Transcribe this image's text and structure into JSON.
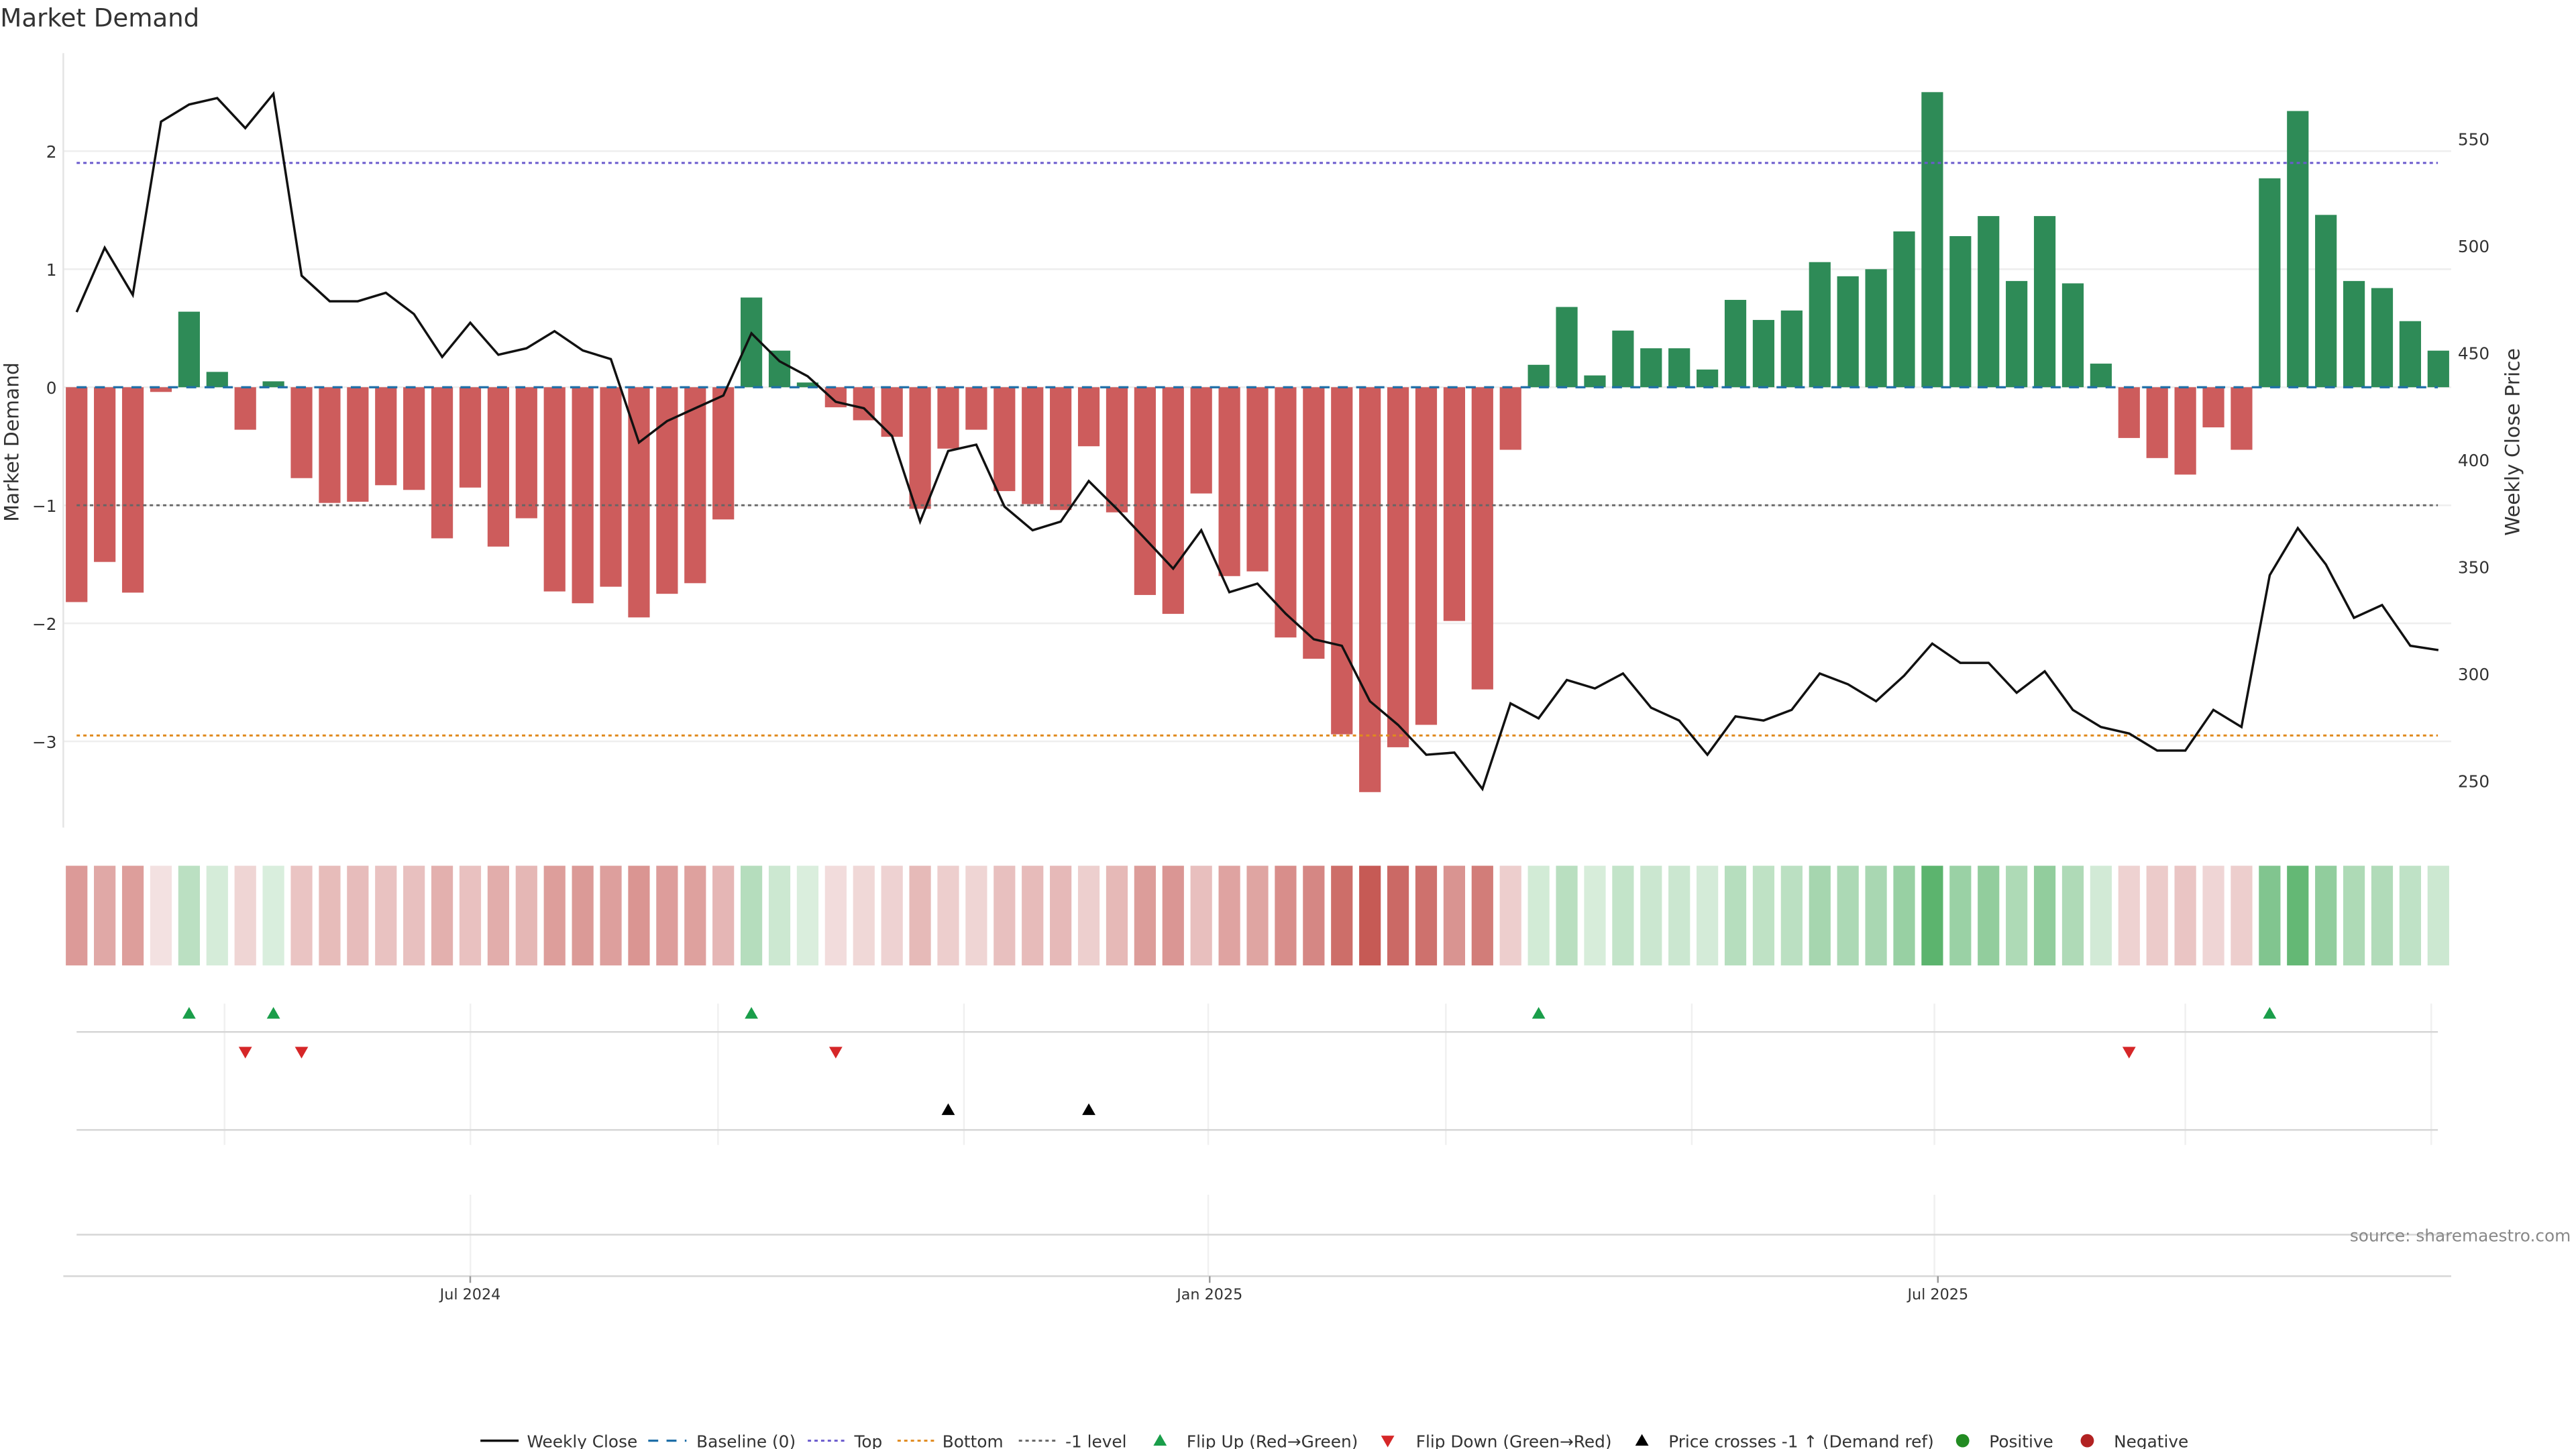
{
  "chart_data": {
    "type": "bar",
    "title": "Market Demand",
    "ylabel": "Market Demand",
    "y2label": "Weekly Close Price",
    "ylim": [
      -3.73,
      2.83
    ],
    "y2lim": [
      228,
      590
    ],
    "yticks": [
      "2",
      "1",
      "0",
      "−1",
      "−2",
      "−3"
    ],
    "ytick_values": [
      2,
      1,
      0,
      -1,
      -2,
      -3
    ],
    "y2ticks": [
      "550",
      "500",
      "450",
      "400",
      "350",
      "300",
      "250"
    ],
    "y2tick_values": [
      550,
      500,
      450,
      400,
      350,
      300,
      250
    ],
    "xticks": [
      "Jul 2024",
      "Jan 2025",
      "Jul 2025"
    ],
    "xtick_week_index": [
      14,
      40.3,
      66.2
    ],
    "reference_lines": {
      "baseline": 0,
      "top": 1.9,
      "bottom": -2.95,
      "minus_one": -1
    },
    "demand": [
      -1.82,
      -1.48,
      -1.74,
      -0.04,
      0.64,
      0.13,
      -0.36,
      0.05,
      -0.77,
      -0.98,
      -0.97,
      -0.83,
      -0.87,
      -1.28,
      -0.85,
      -1.35,
      -1.11,
      -1.73,
      -1.83,
      -1.69,
      -1.95,
      -1.75,
      -1.66,
      -1.12,
      0.76,
      0.31,
      0.04,
      -0.17,
      -0.28,
      -0.42,
      -1.03,
      -0.52,
      -0.36,
      -0.88,
      -0.99,
      -1.04,
      -0.5,
      -1.06,
      -1.76,
      -1.92,
      -0.9,
      -1.6,
      -1.56,
      -2.12,
      -2.3,
      -2.94,
      -3.43,
      -3.05,
      -2.86,
      -1.98,
      -2.56,
      -0.53,
      0.19,
      0.68,
      0.1,
      0.48,
      0.33,
      0.33,
      0.15,
      0.74,
      0.57,
      0.65,
      1.06,
      0.94,
      1.0,
      1.32,
      2.5,
      1.28,
      1.45,
      0.9,
      1.45,
      0.88,
      0.2,
      -0.43,
      -0.6,
      -0.74,
      -0.34,
      -0.53,
      1.77,
      2.34,
      1.46,
      0.9,
      0.84,
      0.56,
      0.31
    ],
    "weekly_close": [
      469,
      499,
      477,
      558,
      566,
      569,
      555,
      571,
      486,
      474,
      474,
      478,
      468,
      448,
      464,
      449,
      452,
      460,
      451,
      447,
      408,
      418,
      424,
      430,
      459,
      446,
      439,
      427,
      424,
      411,
      371,
      404,
      407,
      378,
      367,
      371,
      390,
      377,
      363,
      349,
      367,
      338,
      342,
      328,
      316,
      313,
      287,
      276,
      262,
      263,
      246,
      286,
      279,
      297,
      293,
      300,
      284,
      278,
      262,
      280,
      278,
      283,
      300,
      295,
      287,
      299,
      314,
      305,
      305,
      291,
      301,
      283,
      275,
      272,
      264,
      264,
      283,
      275,
      346,
      368,
      351,
      326,
      332,
      313,
      311
    ],
    "flip_up_weeks": [
      4,
      7,
      24,
      52,
      78
    ],
    "flip_down_weeks": [
      6,
      8,
      27,
      73
    ],
    "price_cross_weeks": [
      31,
      36
    ],
    "legend": {
      "weekly_close": "Weekly Close",
      "baseline": "Baseline (0)",
      "top": "Top",
      "bottom": "Bottom",
      "minus_one": "-1 level",
      "flip_up": "Flip Up (Red→Green)",
      "flip_down": "Flip Down (Green→Red)",
      "price_cross": "Price crosses -1 ↑ (Demand ref)",
      "positive": "Positive",
      "negative": "Negative"
    },
    "legend_placement": "bottom-center",
    "grid": true,
    "source": "source: sharemaestro.com"
  },
  "colors": {
    "positive_bar": "#2e8b57",
    "negative_bar": "#cd5c5c",
    "line": "#111111",
    "baseline": "#1f6fa8",
    "top": "#6a5acd",
    "bottom": "#e08a1e",
    "minus_one": "#666666",
    "flip_up": "#1a9e4a",
    "flip_down": "#d62728",
    "price_cross": "#000000",
    "positive_dot": "#228b22",
    "negative_dot": "#b22222"
  }
}
